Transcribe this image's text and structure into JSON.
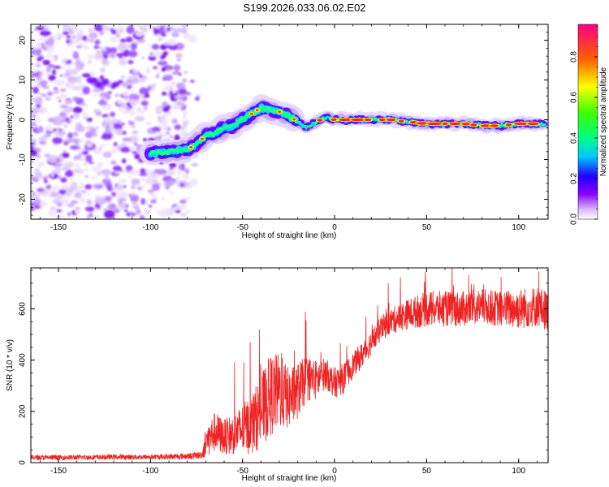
{
  "title": "S199.2026.033.06.02.E02",
  "chart_data": [
    {
      "type": "heatmap",
      "title": "S199.2026.033.06.02.E02",
      "xlabel": "Height of straight line (km)",
      "ylabel": "Frequency (Hz)",
      "xlim": [
        -165,
        116
      ],
      "ylim": [
        -25,
        24
      ],
      "xticks": [
        -150,
        -100,
        -50,
        0,
        50,
        100
      ],
      "yticks": [
        -20,
        -10,
        0,
        10,
        20
      ],
      "colorbar": {
        "label": "Normalized spectral amplitude",
        "range": [
          0,
          0.96
        ],
        "ticks": [
          0.0,
          0.2,
          0.4,
          0.6,
          0.8
        ]
      },
      "ridge_path": [
        {
          "x": -100,
          "y": -8.5
        },
        {
          "x": -90,
          "y": -8
        },
        {
          "x": -80,
          "y": -7.5
        },
        {
          "x": -75,
          "y": -6
        },
        {
          "x": -70,
          "y": -4
        },
        {
          "x": -65,
          "y": -3.5
        },
        {
          "x": -60,
          "y": -2
        },
        {
          "x": -55,
          "y": -1.5
        },
        {
          "x": -50,
          "y": 0
        },
        {
          "x": -45,
          "y": 1.5
        },
        {
          "x": -40,
          "y": 3
        },
        {
          "x": -35,
          "y": 2.5
        },
        {
          "x": -30,
          "y": 2
        },
        {
          "x": -25,
          "y": 1
        },
        {
          "x": -20,
          "y": -0.5
        },
        {
          "x": -15,
          "y": -2
        },
        {
          "x": -10,
          "y": -0.5
        },
        {
          "x": -5,
          "y": 0.5
        },
        {
          "x": 0,
          "y": 0
        },
        {
          "x": 10,
          "y": 0
        },
        {
          "x": 20,
          "y": 0
        },
        {
          "x": 30,
          "y": 0
        },
        {
          "x": 40,
          "y": -0.5
        },
        {
          "x": 50,
          "y": -1
        },
        {
          "x": 60,
          "y": -1
        },
        {
          "x": 70,
          "y": -1
        },
        {
          "x": 80,
          "y": -1.5
        },
        {
          "x": 90,
          "y": -1.5
        },
        {
          "x": 100,
          "y": -1
        },
        {
          "x": 110,
          "y": -1
        },
        {
          "x": 115,
          "y": -1
        }
      ],
      "noise_region_x": [
        -165,
        -78
      ]
    },
    {
      "type": "line",
      "xlabel": "Height of straight line (km)",
      "ylabel": "SNR (10 * v/v)",
      "xlim": [
        -165,
        116
      ],
      "ylim": [
        0,
        760
      ],
      "xticks": [
        -150,
        -100,
        -50,
        0,
        50,
        100
      ],
      "yticks": [
        0,
        200,
        400,
        600
      ],
      "line_color": "#ee2222",
      "series": [
        {
          "name": "SNR",
          "x": [
            -165,
            -150,
            -120,
            -100,
            -80,
            -72,
            -70,
            -65,
            -60,
            -55,
            -50,
            -45,
            -40,
            -35,
            -30,
            -25,
            -20,
            -15,
            -10,
            -5,
            0,
            5,
            10,
            15,
            20,
            25,
            30,
            40,
            50,
            60,
            70,
            80,
            90,
            100,
            110,
            116
          ],
          "y": [
            20,
            20,
            22,
            22,
            25,
            30,
            80,
            120,
            100,
            110,
            130,
            150,
            200,
            260,
            280,
            250,
            280,
            330,
            320,
            350,
            310,
            330,
            380,
            420,
            470,
            520,
            550,
            580,
            600,
            600,
            600,
            610,
            600,
            600,
            610,
            590
          ],
          "noise_amplitude": [
            10,
            10,
            10,
            10,
            12,
            15,
            60,
            80,
            70,
            80,
            100,
            120,
            140,
            160,
            150,
            120,
            110,
            90,
            80,
            60,
            60,
            60,
            50,
            50,
            50,
            50,
            50,
            60,
            70,
            70,
            70,
            70,
            70,
            80,
            80,
            80
          ]
        }
      ]
    }
  ]
}
